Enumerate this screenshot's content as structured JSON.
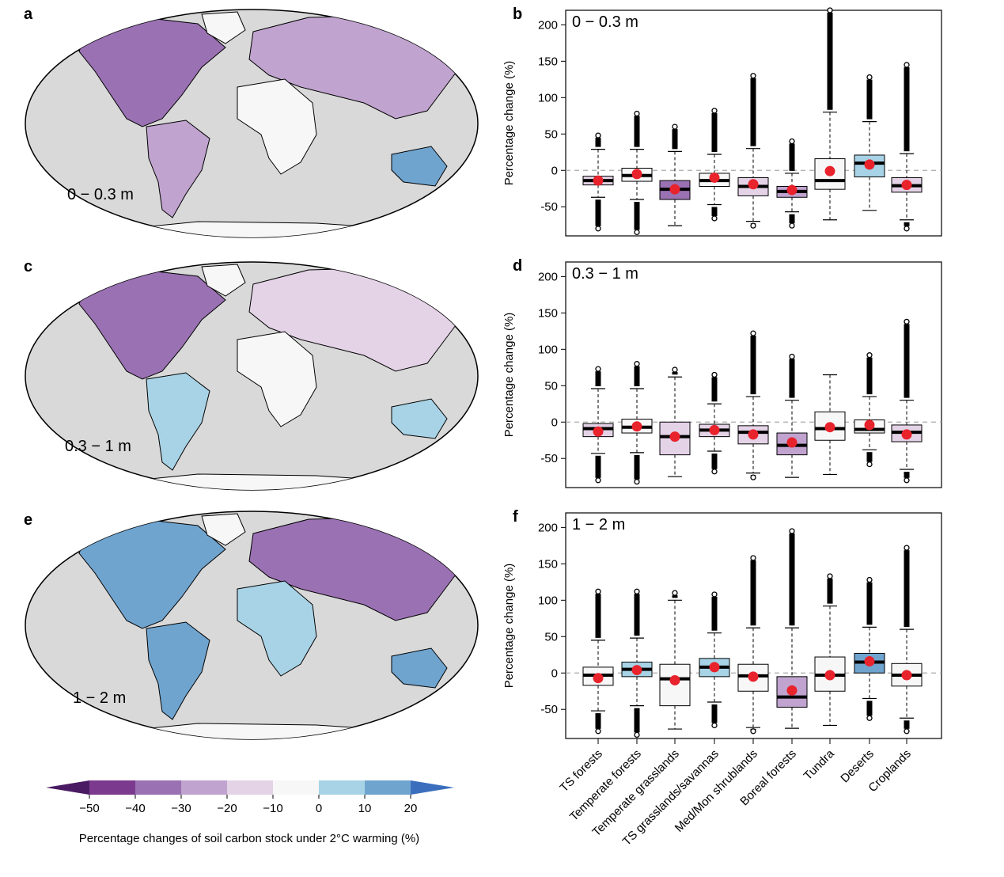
{
  "figure": {
    "map_panels": [
      {
        "letter": "a",
        "depth_label": "0 − 0.3 m"
      },
      {
        "letter": "c",
        "depth_label": "0.3 − 1 m"
      },
      {
        "letter": "e",
        "depth_label": "1 − 2 m"
      }
    ],
    "colorbar": {
      "title": "Percentage changes of soil carbon stock under 2°C warming (%)",
      "ticks": [
        "−50",
        "−40",
        "−30",
        "−20",
        "−10",
        "0",
        "10",
        "20"
      ],
      "colors": [
        "#4a1b63",
        "#7b3a8e",
        "#9a71b3",
        "#c0a3cf",
        "#e4d2e7",
        "#f7f7f7",
        "#a8d3e6",
        "#6fa4cf",
        "#3b6fbe"
      ]
    },
    "map_colors": {
      "ocean": "#d9d9d9",
      "land_neutral": "#f7f7f7",
      "land_purple": "#9a71b3",
      "land_dark_purple": "#6a2c83",
      "land_blue": "#6fa4cf"
    }
  },
  "chart_data": [
    {
      "type": "box",
      "panel": "b",
      "depth_label": "0 − 0.3 m",
      "ylabel": "Percentage change (%)",
      "ylim": [
        -90,
        220
      ],
      "yticks": [
        -50,
        0,
        50,
        100,
        150,
        200
      ],
      "reference_line": 0,
      "categories": [
        "TS forests",
        "Temperate forests",
        "Temperate grasslands",
        "TS grasslands/savannas",
        "Med/Mon shrublands",
        "Boreal forests",
        "Tundra",
        "Deserts",
        "Croplands"
      ],
      "boxes": [
        {
          "q1": -20,
          "median": -14,
          "q3": -8,
          "whisker_low": -37,
          "whisker_high": 29,
          "mean": -14,
          "fill": "#e4d2e7",
          "outliers_low": -80,
          "outliers_high": 48
        },
        {
          "q1": -15,
          "median": -7,
          "q3": 3,
          "whisker_low": -40,
          "whisker_high": 29,
          "mean": -5,
          "fill": "#f7f7f7",
          "outliers_low": -85,
          "outliers_high": 78
        },
        {
          "q1": -40,
          "median": -26,
          "q3": -14,
          "whisker_low": -76,
          "whisker_high": 26,
          "mean": -26,
          "fill": "#9a71b3",
          "outliers_low": null,
          "outliers_high": 60
        },
        {
          "q1": -22,
          "median": -14,
          "q3": -4,
          "whisker_low": -47,
          "whisker_high": 22,
          "mean": -10,
          "fill": "#f7f7f7",
          "outliers_low": -66,
          "outliers_high": 82
        },
        {
          "q1": -35,
          "median": -22,
          "q3": -10,
          "whisker_low": -70,
          "whisker_high": 30,
          "mean": -19,
          "fill": "#e4d2e7",
          "outliers_low": -76,
          "outliers_high": 130
        },
        {
          "q1": -37,
          "median": -29,
          "q3": -22,
          "whisker_low": -57,
          "whisker_high": -4,
          "mean": -27,
          "fill": "#c0a3cf",
          "outliers_low": -76,
          "outliers_high": 40
        },
        {
          "q1": -26,
          "median": -14,
          "q3": 16,
          "whisker_low": -68,
          "whisker_high": 80,
          "mean": -1,
          "fill": "#f7f7f7",
          "outliers_low": null,
          "outliers_high": 220
        },
        {
          "q1": -9,
          "median": 10,
          "q3": 21,
          "whisker_low": -55,
          "whisker_high": 67,
          "mean": 8,
          "fill": "#a8d3e6",
          "outliers_low": null,
          "outliers_high": 128
        },
        {
          "q1": -30,
          "median": -21,
          "q3": -10,
          "whisker_low": -68,
          "whisker_high": 23,
          "mean": -20,
          "fill": "#e4d2e7",
          "outliers_low": -80,
          "outliers_high": 145
        }
      ]
    },
    {
      "type": "box",
      "panel": "d",
      "depth_label": "0.3 − 1 m",
      "ylabel": "Percentage change (%)",
      "ylim": [
        -90,
        220
      ],
      "yticks": [
        -50,
        0,
        50,
        100,
        150,
        200
      ],
      "reference_line": 0,
      "categories": [
        "TS forests",
        "Temperate forests",
        "Temperate grasslands",
        "TS grasslands/savannas",
        "Med/Mon shrublands",
        "Boreal forests",
        "Tundra",
        "Deserts",
        "Croplands"
      ],
      "boxes": [
        {
          "q1": -20,
          "median": -9,
          "q3": -2,
          "whisker_low": -43,
          "whisker_high": 46,
          "mean": -13,
          "fill": "#e4d2e7",
          "outliers_low": -80,
          "outliers_high": 73
        },
        {
          "q1": -15,
          "median": -7,
          "q3": 4,
          "whisker_low": -42,
          "whisker_high": 46,
          "mean": -6,
          "fill": "#f7f7f7",
          "outliers_low": -82,
          "outliers_high": 80
        },
        {
          "q1": -45,
          "median": -20,
          "q3": 0,
          "whisker_low": -75,
          "whisker_high": 62,
          "mean": -20,
          "fill": "#e4d2e7",
          "outliers_low": null,
          "outliers_high": 72
        },
        {
          "q1": -20,
          "median": -11,
          "q3": -3,
          "whisker_low": -40,
          "whisker_high": 25,
          "mean": -11,
          "fill": "#e4d2e7",
          "outliers_low": -68,
          "outliers_high": 65
        },
        {
          "q1": -30,
          "median": -14,
          "q3": -5,
          "whisker_low": -70,
          "whisker_high": 35,
          "mean": -17,
          "fill": "#e4d2e7",
          "outliers_low": -76,
          "outliers_high": 122
        },
        {
          "q1": -45,
          "median": -32,
          "q3": -15,
          "whisker_low": -76,
          "whisker_high": 30,
          "mean": -28,
          "fill": "#c0a3cf",
          "outliers_low": null,
          "outliers_high": 90
        },
        {
          "q1": -25,
          "median": -9,
          "q3": 14,
          "whisker_low": -72,
          "whisker_high": 65,
          "mean": -7,
          "fill": "#f7f7f7",
          "outliers_low": null,
          "outliers_high": null
        },
        {
          "q1": -15,
          "median": -10,
          "q3": 3,
          "whisker_low": -38,
          "whisker_high": 35,
          "mean": -4,
          "fill": "#f7f7f7",
          "outliers_low": -58,
          "outliers_high": 92
        },
        {
          "q1": -27,
          "median": -14,
          "q3": -4,
          "whisker_low": -65,
          "whisker_high": 30,
          "mean": -17,
          "fill": "#e4d2e7",
          "outliers_low": -80,
          "outliers_high": 138
        }
      ]
    },
    {
      "type": "box",
      "panel": "f",
      "depth_label": "1 − 2 m",
      "ylabel": "Percentage change (%)",
      "ylim": [
        -90,
        220
      ],
      "yticks": [
        -50,
        0,
        50,
        100,
        150,
        200
      ],
      "reference_line": 0,
      "categories": [
        "TS forests",
        "Temperate forests",
        "Temperate grasslands",
        "TS grasslands/savannas",
        "Med/Mon shrublands",
        "Boreal forests",
        "Tundra",
        "Deserts",
        "Croplands"
      ],
      "boxes": [
        {
          "q1": -17,
          "median": -3,
          "q3": 8,
          "whisker_low": -52,
          "whisker_high": 45,
          "mean": -7,
          "fill": "#f7f7f7",
          "outliers_low": -80,
          "outliers_high": 112
        },
        {
          "q1": -5,
          "median": 5,
          "q3": 15,
          "whisker_low": -45,
          "whisker_high": 48,
          "mean": 4,
          "fill": "#a8d3e6",
          "outliers_low": -85,
          "outliers_high": 112
        },
        {
          "q1": -45,
          "median": -8,
          "q3": 12,
          "whisker_low": -77,
          "whisker_high": 100,
          "mean": -10,
          "fill": "#f7f7f7",
          "outliers_low": null,
          "outliers_high": 110
        },
        {
          "q1": -5,
          "median": 8,
          "q3": 20,
          "whisker_low": -40,
          "whisker_high": 55,
          "mean": 8,
          "fill": "#a8d3e6",
          "outliers_low": -72,
          "outliers_high": 108
        },
        {
          "q1": -25,
          "median": -4,
          "q3": 12,
          "whisker_low": -75,
          "whisker_high": 62,
          "mean": -5,
          "fill": "#f7f7f7",
          "outliers_low": -80,
          "outliers_high": 158
        },
        {
          "q1": -47,
          "median": -33,
          "q3": -5,
          "whisker_low": -76,
          "whisker_high": 62,
          "mean": -24,
          "fill": "#c0a3cf",
          "outliers_low": null,
          "outliers_high": 195
        },
        {
          "q1": -25,
          "median": -3,
          "q3": 22,
          "whisker_low": -72,
          "whisker_high": 92,
          "mean": -3,
          "fill": "#f7f7f7",
          "outliers_low": null,
          "outliers_high": 133
        },
        {
          "q1": 0,
          "median": 15,
          "q3": 27,
          "whisker_low": -35,
          "whisker_high": 63,
          "mean": 16,
          "fill": "#6fa4cf",
          "outliers_low": -62,
          "outliers_high": 128
        },
        {
          "q1": -18,
          "median": -3,
          "q3": 13,
          "whisker_low": -62,
          "whisker_high": 60,
          "mean": -3,
          "fill": "#f7f7f7",
          "outliers_low": -80,
          "outliers_high": 172
        }
      ]
    }
  ]
}
